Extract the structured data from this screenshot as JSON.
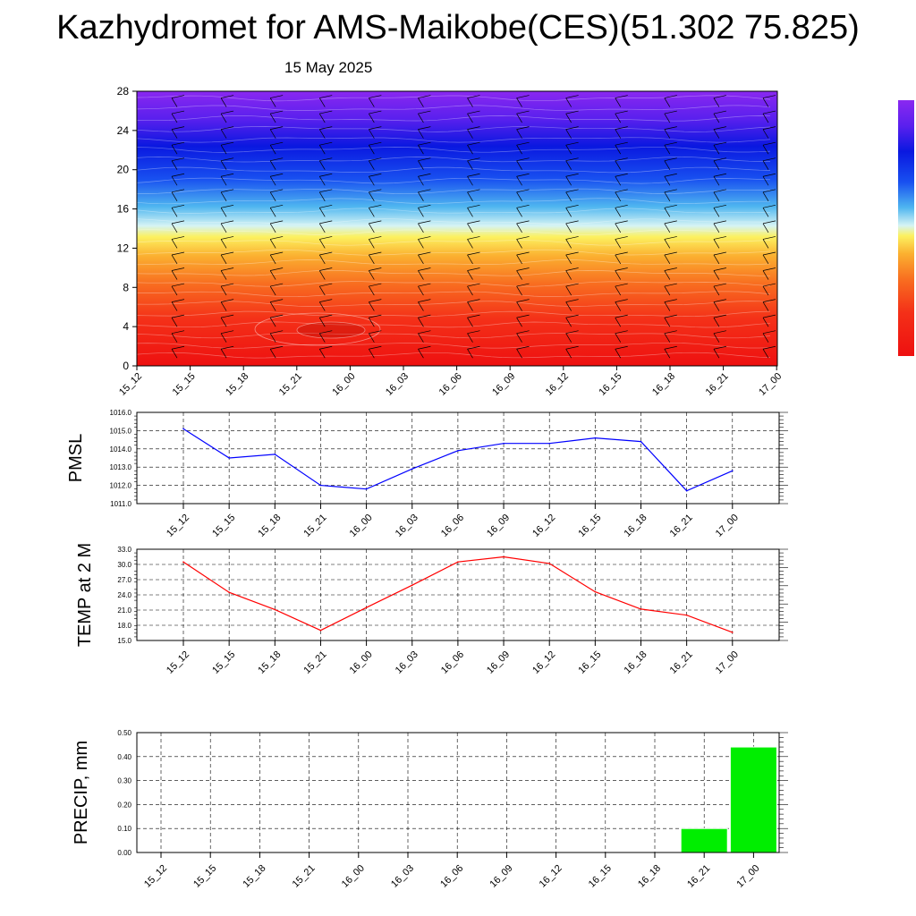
{
  "header": {
    "title": "Kazhydromet for AMS-Maikobe(CES)(51.302 75.825)",
    "date": "15 May 2025"
  },
  "chart_data": [
    {
      "id": "cross_section",
      "type": "heatmap",
      "title": "",
      "xlabel": "",
      "ylabel": "",
      "x": [
        "15_12",
        "15_15",
        "15_18",
        "15_21",
        "16_00",
        "16_03",
        "16_06",
        "16_09",
        "16_12",
        "16_15",
        "16_18",
        "16_21",
        "17_00"
      ],
      "yticks": [
        0,
        4,
        8,
        12,
        16,
        20,
        24,
        28
      ],
      "ylim": [
        0,
        28
      ],
      "colorbar": {
        "stops": [
          {
            "pos": 0.0,
            "color": "#ee1010"
          },
          {
            "pos": 0.17,
            "color": "#f43018"
          },
          {
            "pos": 0.3,
            "color": "#f86e20"
          },
          {
            "pos": 0.4,
            "color": "#fbb030"
          },
          {
            "pos": 0.47,
            "color": "#fcf160"
          },
          {
            "pos": 0.51,
            "color": "#d6f4f4"
          },
          {
            "pos": 0.58,
            "color": "#4fb6f0"
          },
          {
            "pos": 0.68,
            "color": "#1850f0"
          },
          {
            "pos": 0.8,
            "color": "#0a18e0"
          },
          {
            "pos": 0.9,
            "color": "#5a20ee"
          },
          {
            "pos": 1.0,
            "color": "#8a28f0"
          }
        ]
      },
      "overlay": "wind barbs and contour lines"
    },
    {
      "id": "pmsl",
      "type": "line",
      "ylabel": "PMSL",
      "x": [
        "15_12",
        "15_15",
        "15_18",
        "15_21",
        "16_00",
        "16_03",
        "16_06",
        "16_09",
        "16_12",
        "16_15",
        "16_18",
        "16_21",
        "17_00"
      ],
      "series": [
        {
          "values": [
            1015.1,
            1013.5,
            1013.7,
            1012.0,
            1011.8,
            1012.9,
            1013.9,
            1014.3,
            1014.3,
            1014.6,
            1014.4,
            1011.7,
            1012.8
          ],
          "color": "#0000ff"
        }
      ],
      "ylim": [
        1011.0,
        1016.0
      ],
      "yticks": [
        "1011.0",
        "1012.0",
        "1013.0",
        "1014.0",
        "1015.0",
        "1016.0"
      ],
      "grid": true
    },
    {
      "id": "temp2m",
      "type": "line",
      "ylabel": "TEMP at 2 M",
      "x": [
        "15_12",
        "15_15",
        "15_18",
        "15_21",
        "16_00",
        "16_03",
        "16_06",
        "16_09",
        "16_12",
        "16_15",
        "16_18",
        "16_21",
        "17_00"
      ],
      "series": [
        {
          "values": [
            30.5,
            24.5,
            21.1,
            17.0,
            21.5,
            25.9,
            30.5,
            31.5,
            30.2,
            24.6,
            21.2,
            20.0,
            16.6
          ],
          "color": "#ff0000"
        }
      ],
      "ylim": [
        15.0,
        33.0
      ],
      "yticks": [
        "15.0",
        "18.0",
        "21.0",
        "24.0",
        "27.0",
        "30.0",
        "33.0"
      ],
      "grid": true
    },
    {
      "id": "precip",
      "type": "bar",
      "ylabel": "PRECIP, mm",
      "categories": [
        "15_12",
        "15_15",
        "15_18",
        "15_21",
        "16_00",
        "16_03",
        "16_06",
        "16_09",
        "16_12",
        "16_15",
        "16_18",
        "16_21",
        "17_00"
      ],
      "values": [
        0,
        0,
        0,
        0,
        0,
        0,
        0,
        0,
        0,
        0,
        0,
        0.1,
        0.44
      ],
      "color": "#00ee00",
      "ylim": [
        0,
        0.5
      ],
      "yticks": [
        "0.00",
        "0.10",
        "0.20",
        "0.30",
        "0.40",
        "0.50"
      ],
      "grid": true
    }
  ]
}
